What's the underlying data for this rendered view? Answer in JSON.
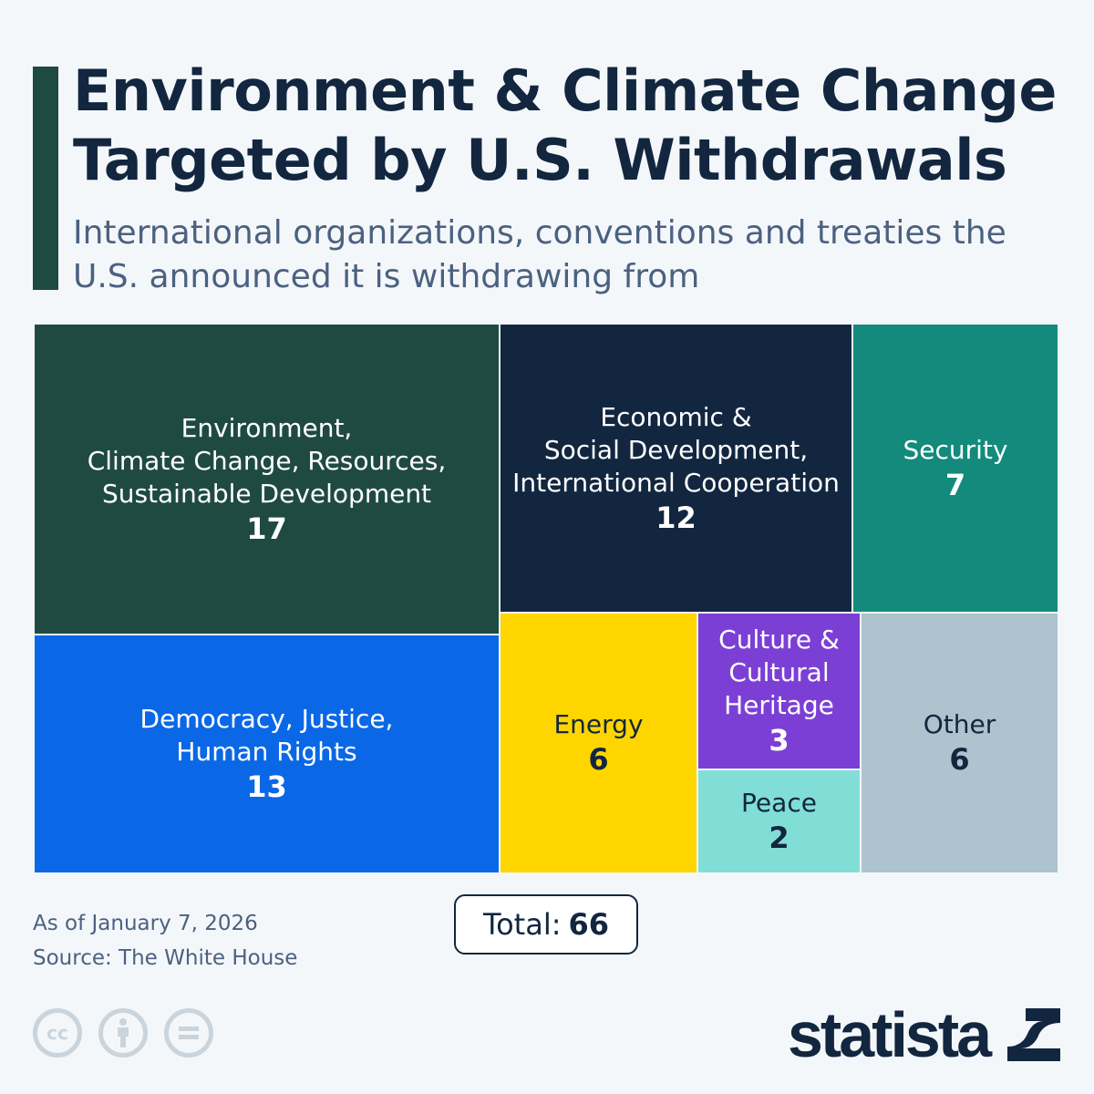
{
  "header": {
    "title": "Environment & Climate Change Targeted by U.S. Withdrawals",
    "subtitle": "International organizations, conventions and treaties the U.S. announced it is withdrawing from"
  },
  "chart_data": {
    "type": "treemap",
    "items": [
      {
        "label": "Environment,\nClimate Change, Resources,\nSustainable Development",
        "value": 17,
        "color": "#1f4a42",
        "text_color": "#ffffff"
      },
      {
        "label": "Democracy, Justice,\nHuman Rights",
        "value": 13,
        "color": "#0a68e6",
        "text_color": "#ffffff"
      },
      {
        "label": "Economic &\nSocial Development,\nInternational Cooperation",
        "value": 12,
        "color": "#12263f",
        "text_color": "#ffffff"
      },
      {
        "label": "Security",
        "value": 7,
        "color": "#138a7c",
        "text_color": "#ffffff"
      },
      {
        "label": "Energy",
        "value": 6,
        "color": "#ffd500",
        "text_color": "#12263f"
      },
      {
        "label": "Culture &\nCultural\nHeritage",
        "value": 3,
        "color": "#7b3fd6",
        "text_color": "#ffffff"
      },
      {
        "label": "Peace",
        "value": 2,
        "color": "#80ded6",
        "text_color": "#12263f"
      },
      {
        "label": "Other",
        "value": 6,
        "color": "#adc3cd",
        "text_color": "#12263f"
      }
    ]
  },
  "total": {
    "label": "Total:",
    "value": "66"
  },
  "footer": {
    "date": "As of January 7, 2026",
    "source": "Source: The White House",
    "license_icons": [
      "cc-icon",
      "attribution-icon",
      "no-derivatives-icon"
    ],
    "brand": "statista"
  }
}
